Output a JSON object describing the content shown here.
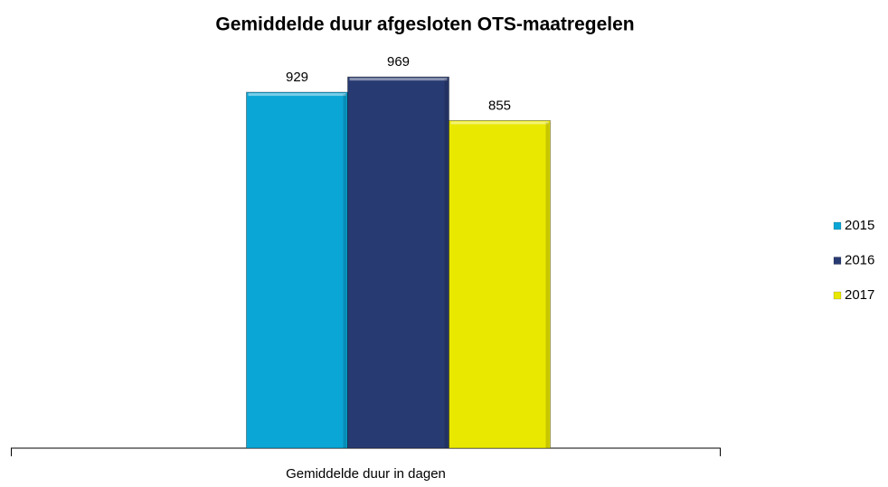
{
  "chart_data": {
    "type": "bar",
    "title": "Gemiddelde duur afgesloten OTS-maatregelen",
    "categories": [
      "Gemiddelde duur in dagen"
    ],
    "series": [
      {
        "name": "2015",
        "color": "#0aa6d6",
        "values": [
          929
        ]
      },
      {
        "name": "2016",
        "color": "#283a72",
        "values": [
          969
        ]
      },
      {
        "name": "2017",
        "color": "#e9e800",
        "values": [
          855
        ]
      }
    ],
    "legend": "right"
  }
}
